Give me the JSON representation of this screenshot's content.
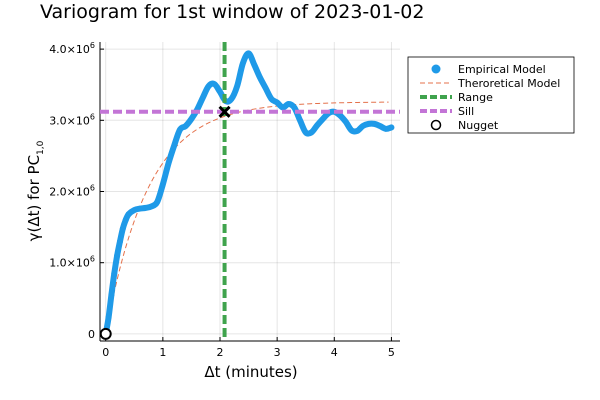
{
  "chart_data": {
    "type": "line",
    "title": "Variogram for 1st window of 2023-01-02",
    "xlabel": "Δt (minutes)",
    "ylabel_main": "γ(Δt) for PC",
    "ylabel_sub": "1,0",
    "xlim": [
      -0.1,
      5.15
    ],
    "ylim": [
      -100000,
      4100000
    ],
    "xticks": [
      0,
      1,
      2,
      3,
      4,
      5
    ],
    "xtick_labels": [
      "0",
      "1",
      "2",
      "3",
      "4",
      "5"
    ],
    "yticks": [
      0,
      1000000,
      2000000,
      3000000,
      4000000
    ],
    "ytick_labels": [
      {
        "mantissa": "0",
        "exp": ""
      },
      {
        "mantissa": "1.0×10",
        "exp": "6"
      },
      {
        "mantissa": "2.0×10",
        "exp": "6"
      },
      {
        "mantissa": "3.0×10",
        "exp": "6"
      },
      {
        "mantissa": "4.0×10",
        "exp": "6"
      }
    ],
    "grid": true,
    "legend_position": "top-right",
    "colors": {
      "empirical": "#1f9ae8",
      "theoretical": "#e4714b",
      "range": "#3fa34d",
      "sill": "#c375d6",
      "nugget": "#000000"
    },
    "series": [
      {
        "name": "Empirical Model",
        "kind": "empirical",
        "x": [
          0.0,
          0.05,
          0.1,
          0.15,
          0.2,
          0.25,
          0.3,
          0.35,
          0.4,
          0.5,
          0.6,
          0.7,
          0.8,
          0.9,
          1.0,
          1.1,
          1.2,
          1.3,
          1.4,
          1.5,
          1.6,
          1.7,
          1.8,
          1.9,
          2.0,
          2.1,
          2.2,
          2.3,
          2.4,
          2.5,
          2.6,
          2.7,
          2.8,
          2.9,
          3.0,
          3.1,
          3.2,
          3.3,
          3.4,
          3.5,
          3.6,
          3.7,
          3.8,
          3.9,
          4.0,
          4.1,
          4.2,
          4.3,
          4.4,
          4.5,
          4.6,
          4.7,
          4.8,
          4.9,
          5.0
        ],
        "y": [
          0,
          230000,
          550000,
          850000,
          1100000,
          1300000,
          1480000,
          1600000,
          1680000,
          1740000,
          1760000,
          1770000,
          1790000,
          1850000,
          2100000,
          2400000,
          2650000,
          2870000,
          2920000,
          3020000,
          3150000,
          3320000,
          3480000,
          3510000,
          3400000,
          3270000,
          3300000,
          3480000,
          3800000,
          3940000,
          3780000,
          3600000,
          3450000,
          3300000,
          3250000,
          3180000,
          3230000,
          3180000,
          3000000,
          2830000,
          2830000,
          2930000,
          3020000,
          3100000,
          3120000,
          3070000,
          2980000,
          2860000,
          2850000,
          2920000,
          2950000,
          2950000,
          2920000,
          2880000,
          2900000
        ]
      },
      {
        "name": "Theroretical Model",
        "kind": "theoretical",
        "sill": 3260000,
        "range_param": 0.75,
        "x_start": 0.0,
        "x_end": 4.95
      }
    ],
    "range_x": 2.08,
    "sill_y": 3120000,
    "nugget_point": [
      0,
      0
    ],
    "range_marker": [
      2.08,
      3120000
    ],
    "legend": [
      {
        "label": "Empirical Model",
        "kind": "empirical"
      },
      {
        "label": "Theroretical Model",
        "kind": "theoretical"
      },
      {
        "label": " Range",
        "kind": "range"
      },
      {
        "label": "Sill",
        "kind": "sill"
      },
      {
        "label": "Nugget",
        "kind": "nugget"
      }
    ]
  }
}
